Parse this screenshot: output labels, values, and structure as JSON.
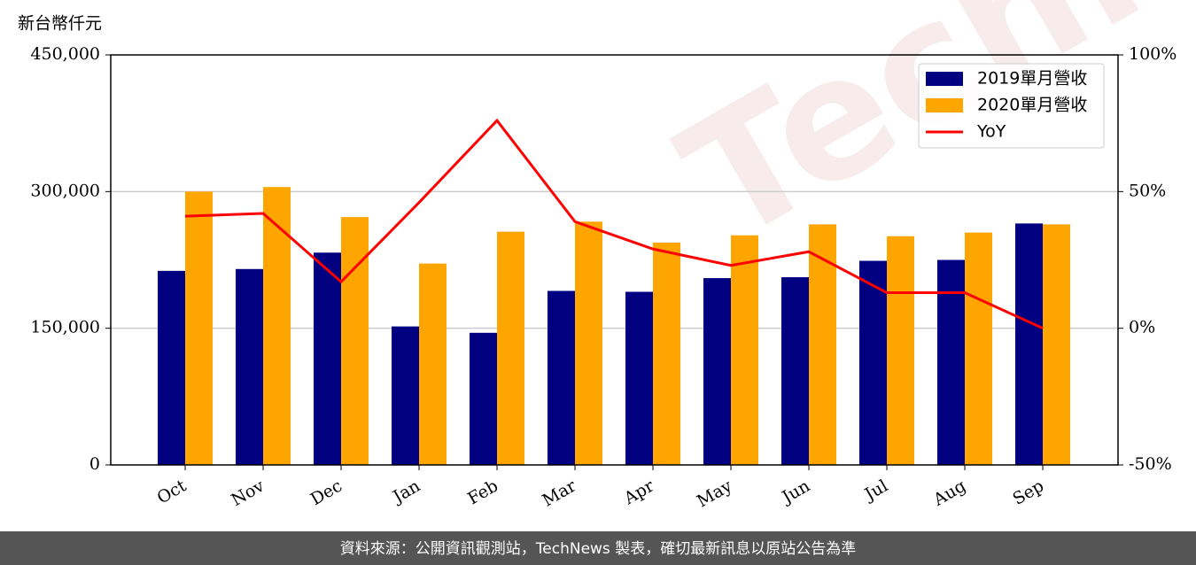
{
  "chart_data": {
    "type": "bar",
    "y_label": "新台幣仟元",
    "watermark": "TechNews",
    "source_note": "資料來源：公開資訊觀測站，TechNews 製表，確切最新訊息以原站公告為準",
    "categories": [
      "Oct",
      "Nov",
      "Dec",
      "Jan",
      "Feb",
      "Mar",
      "Apr",
      "May",
      "Jun",
      "Jul",
      "Aug",
      "Sep"
    ],
    "series": [
      {
        "name": "2019單月營收",
        "color": "#000080",
        "values": [
          213000,
          215000,
          233000,
          152000,
          145000,
          191000,
          190000,
          205000,
          206000,
          224000,
          225000,
          265000
        ]
      },
      {
        "name": "2020單月營收",
        "color": "#ffa500",
        "values": [
          300000,
          305000,
          272000,
          221000,
          256000,
          267000,
          244000,
          252000,
          264000,
          251000,
          255000,
          264000
        ]
      },
      {
        "name": "YoY",
        "type": "line",
        "axis": "y2",
        "color": "#ff0000",
        "values": [
          41,
          42,
          17,
          46,
          76,
          39,
          29,
          23,
          28,
          13,
          13,
          0
        ]
      }
    ],
    "ylim": [
      0,
      450000
    ],
    "yticks": [
      0,
      {
        "value": 150000,
        "label": "150,000"
      },
      {
        "value": 300000,
        "label": "300,000"
      },
      {
        "value": 450000,
        "label": "450,000"
      }
    ],
    "y2lim": [
      -50,
      100
    ],
    "y2ticks": [
      {
        "value": -50,
        "label": "-50%"
      },
      {
        "value": 0,
        "label": "0%"
      },
      {
        "value": 50,
        "label": "50%"
      },
      {
        "value": 100,
        "label": "100%"
      }
    ],
    "grid": true,
    "legend": "upper right"
  }
}
